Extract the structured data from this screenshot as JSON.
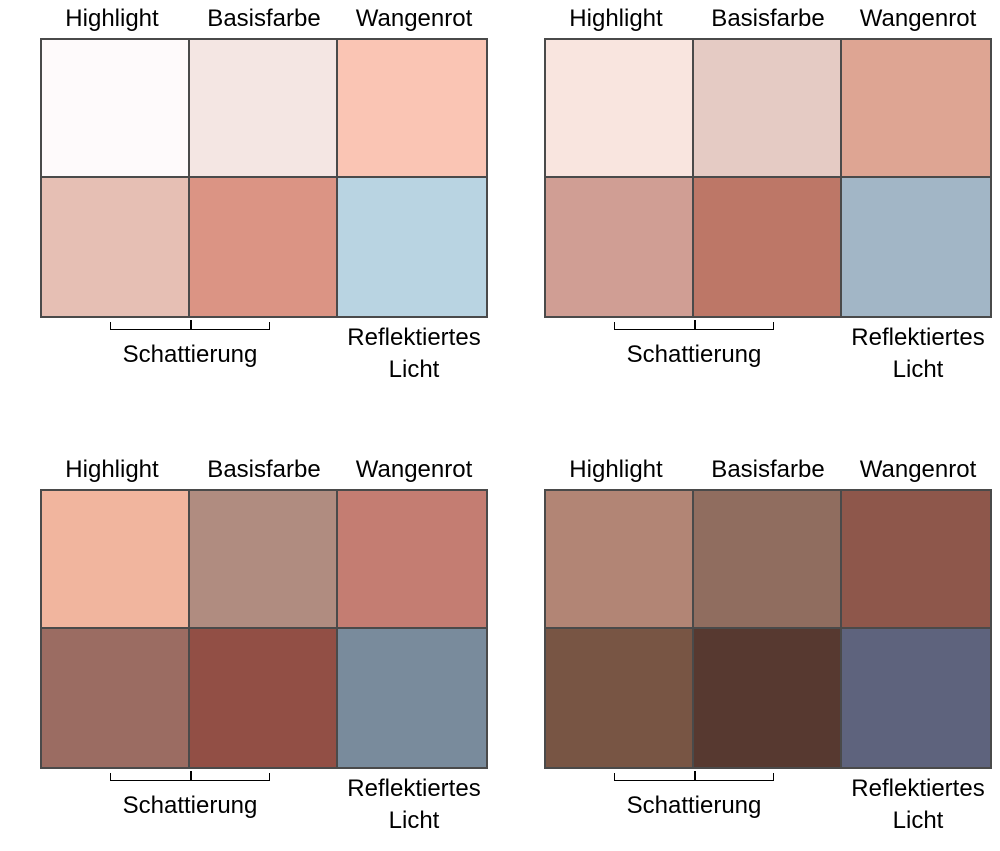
{
  "palettes": [
    {
      "headers": [
        "Highlight",
        "Basisfarbe",
        "Wangenrot"
      ],
      "colors": [
        "#fefafb",
        "#f4e6e3",
        "#fac5b4",
        "#e6bfb4",
        "#db9484",
        "#b9d4e2"
      ],
      "shade_label": "Schattierung",
      "reflect_line1": "Reflektiertes",
      "reflect_line2": "Licht"
    },
    {
      "headers": [
        "Highlight",
        "Basisfarbe",
        "Wangenrot"
      ],
      "colors": [
        "#f9e5df",
        "#e5cbc4",
        "#dea593",
        "#d09e94",
        "#bd7767",
        "#a2b6c6"
      ],
      "shade_label": "Schattierung",
      "reflect_line1": "Reflektiertes",
      "reflect_line2": "Licht"
    },
    {
      "headers": [
        "Highlight",
        "Basisfarbe",
        "Wangenrot"
      ],
      "colors": [
        "#f1b59e",
        "#b08c80",
        "#c47d72",
        "#9b6c62",
        "#924f45",
        "#798b9c"
      ],
      "shade_label": "Schattierung",
      "reflect_line1": "Reflektiertes",
      "reflect_line2": "Licht"
    },
    {
      "headers": [
        "Highlight",
        "Basisfarbe",
        "Wangenrot"
      ],
      "colors": [
        "#b28575",
        "#906d5f",
        "#8e574b",
        "#785544",
        "#573930",
        "#5e637d"
      ],
      "shade_label": "Schattierung",
      "reflect_line1": "Reflektiertes",
      "reflect_line2": "Licht"
    }
  ]
}
